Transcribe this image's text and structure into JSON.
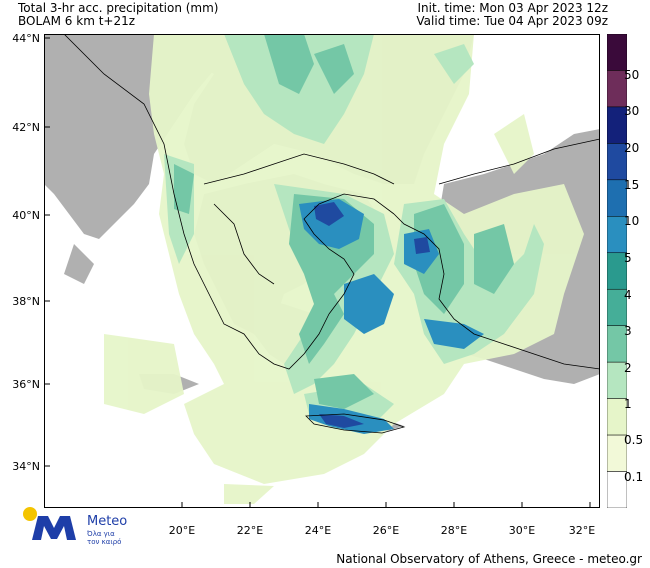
{
  "header": {
    "line1_left": "Total 3-hr acc. precipitation (mm)",
    "line2_left": "BOLAM 6 km t+21z",
    "line1_right": "Init. time: Mon 03 Apr 2023 12z",
    "line2_right": "Valid time: Tue 04 Apr 2023 09z"
  },
  "axes": {
    "lat_labels": [
      "44°N",
      "42°N",
      "40°N",
      "38°N",
      "36°N",
      "34°N"
    ],
    "lon_labels": [
      "20°E",
      "22°E",
      "24°E",
      "26°E",
      "28°E",
      "30°E",
      "32°E"
    ]
  },
  "legend": {
    "levels": [
      "50",
      "40",
      "30",
      "20",
      "15",
      "10",
      "5",
      "4",
      "3",
      "2",
      "1",
      "0.5",
      "0.1"
    ],
    "colors": [
      "#3a0a3a",
      "#6e2d5a",
      "#13217a",
      "#1f4aa0",
      "#1e6fb0",
      "#2a8fbf",
      "#2a9a8e",
      "#45ae98",
      "#74c7a6",
      "#b5e6c0",
      "#e6f5c9",
      "#f2f9d8",
      "#ffffff"
    ]
  },
  "colors": {
    "land_dry": "#b0b0b0",
    "sea": "#ffffff",
    "light_rain": "#e6f5c9"
  },
  "logo": {
    "word": "Meteo",
    "sub1": "Όλα για",
    "sub2": "τον καιρό"
  },
  "footer": "National Observatory of Athens, Greece - meteo.gr"
}
